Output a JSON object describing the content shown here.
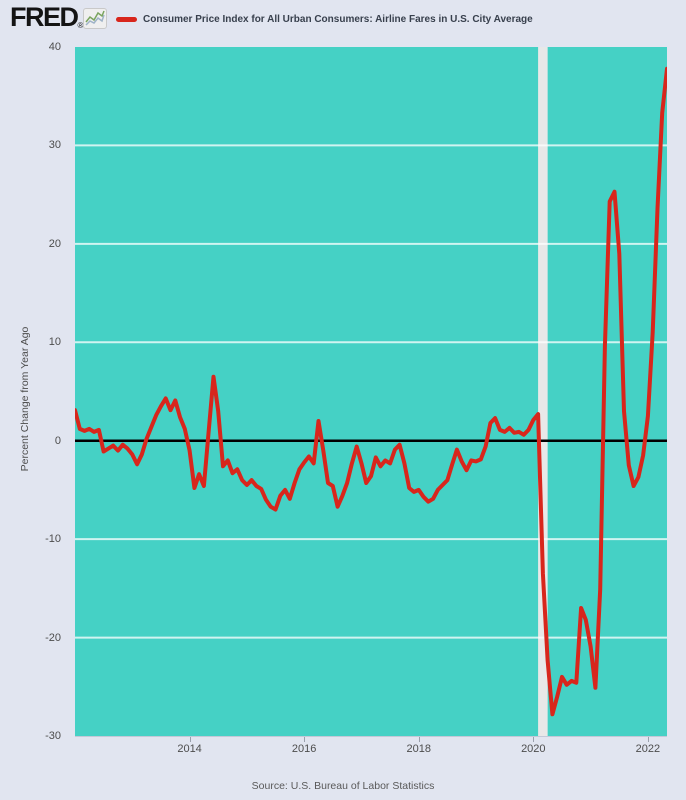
{
  "header": {
    "logo_text": "FRED",
    "registered_mark": "®",
    "legend_label": "Consumer Price Index for All Urban Consumers: Airline Fares in U.S. City Average"
  },
  "y_axis": {
    "title": "Percent Change from Year Ago",
    "ticks": [
      40,
      30,
      20,
      10,
      0,
      -10,
      -20,
      -30
    ],
    "gridline_values": [
      30,
      20,
      10,
      -10,
      -20
    ],
    "zero_line_value": 0
  },
  "x_axis": {
    "tick_years": [
      2014,
      2016,
      2018,
      2020,
      2022
    ]
  },
  "footer": {
    "source_text": "Source: U.S. Bureau of Labor Statistics"
  },
  "colors": {
    "figure_background": "#e1e5f0",
    "plot_background": "#45d1c5",
    "line": "#d8261c",
    "zero_line": "#000000",
    "gridline": "#ffffff",
    "recession_band": "#e8e8e8",
    "tick_text": "#4d4d4d",
    "title_text": "#38404d"
  },
  "chart_data": {
    "type": "line",
    "title": "Consumer Price Index for All Urban Consumers: Airline Fares in U.S. City Average",
    "ylabel": "Percent Change from Year Ago",
    "frequency": "monthly",
    "x_start": "2012-01",
    "x_end": "2022-05",
    "ylim": [
      -30,
      40
    ],
    "grid": "horizontal-only",
    "legend_position": "top",
    "recession_band": {
      "start": "2020-02",
      "end": "2020-04"
    },
    "source": "U.S. Bureau of Labor Statistics",
    "dates": [
      "2012-01",
      "2012-02",
      "2012-03",
      "2012-04",
      "2012-05",
      "2012-06",
      "2012-07",
      "2012-08",
      "2012-09",
      "2012-10",
      "2012-11",
      "2012-12",
      "2013-01",
      "2013-02",
      "2013-03",
      "2013-04",
      "2013-05",
      "2013-06",
      "2013-07",
      "2013-08",
      "2013-09",
      "2013-10",
      "2013-11",
      "2013-12",
      "2014-01",
      "2014-02",
      "2014-03",
      "2014-04",
      "2014-05",
      "2014-06",
      "2014-07",
      "2014-08",
      "2014-09",
      "2014-10",
      "2014-11",
      "2014-12",
      "2015-01",
      "2015-02",
      "2015-03",
      "2015-04",
      "2015-05",
      "2015-06",
      "2015-07",
      "2015-08",
      "2015-09",
      "2015-10",
      "2015-11",
      "2015-12",
      "2016-01",
      "2016-02",
      "2016-03",
      "2016-04",
      "2016-05",
      "2016-06",
      "2016-07",
      "2016-08",
      "2016-09",
      "2016-10",
      "2016-11",
      "2016-12",
      "2017-01",
      "2017-02",
      "2017-03",
      "2017-04",
      "2017-05",
      "2017-06",
      "2017-07",
      "2017-08",
      "2017-09",
      "2017-10",
      "2017-11",
      "2017-12",
      "2018-01",
      "2018-02",
      "2018-03",
      "2018-04",
      "2018-05",
      "2018-06",
      "2018-07",
      "2018-08",
      "2018-09",
      "2018-10",
      "2018-11",
      "2018-12",
      "2019-01",
      "2019-02",
      "2019-03",
      "2019-04",
      "2019-05",
      "2019-06",
      "2019-07",
      "2019-08",
      "2019-09",
      "2019-10",
      "2019-11",
      "2019-12",
      "2020-01",
      "2020-02",
      "2020-03",
      "2020-04",
      "2020-05",
      "2020-06",
      "2020-07",
      "2020-08",
      "2020-09",
      "2020-10",
      "2020-11",
      "2020-12",
      "2021-01",
      "2021-02",
      "2021-03",
      "2021-04",
      "2021-05",
      "2021-06",
      "2021-07",
      "2021-08",
      "2021-09",
      "2021-10",
      "2021-11",
      "2021-12",
      "2022-01",
      "2022-02",
      "2022-03",
      "2022-04",
      "2022-05"
    ],
    "values": [
      3.1,
      1.2,
      1.0,
      1.2,
      0.9,
      1.1,
      -1.1,
      -0.8,
      -0.5,
      -1.0,
      -0.4,
      -0.8,
      -1.4,
      -2.4,
      -1.4,
      0.2,
      1.4,
      2.6,
      3.5,
      4.3,
      3.1,
      4.1,
      2.4,
      1.2,
      -1.0,
      -4.8,
      -3.4,
      -4.6,
      1.0,
      6.5,
      3.0,
      -2.6,
      -2.0,
      -3.3,
      -2.9,
      -4.0,
      -4.5,
      -4.0,
      -4.6,
      -4.9,
      -6.0,
      -6.7,
      -7.0,
      -5.6,
      -5.0,
      -5.9,
      -4.3,
      -2.9,
      -2.2,
      -1.6,
      -2.3,
      2.0,
      -1.0,
      -4.3,
      -4.6,
      -6.7,
      -5.6,
      -4.3,
      -2.3,
      -0.6,
      -2.3,
      -4.3,
      -3.6,
      -1.7,
      -2.6,
      -2.0,
      -2.3,
      -0.9,
      -0.4,
      -2.3,
      -4.8,
      -5.2,
      -5.0,
      -5.7,
      -6.2,
      -5.9,
      -5.0,
      -4.5,
      -4.0,
      -2.4,
      -0.9,
      -2.1,
      -3.0,
      -2.0,
      -2.1,
      -1.9,
      -0.6,
      1.8,
      2.3,
      1.1,
      0.9,
      1.3,
      0.8,
      0.9,
      0.6,
      1.1,
      2.1,
      2.7,
      -13.5,
      -22.3,
      -27.8,
      -26.0,
      -24.0,
      -24.8,
      -24.4,
      -24.6,
      -17.0,
      -18.2,
      -20.9,
      -25.1,
      -15.1,
      9.6,
      24.3,
      25.3,
      19.0,
      3.0,
      -2.5,
      -4.6,
      -3.7,
      -1.5,
      2.5,
      11.0,
      23.6,
      33.3,
      37.8
    ]
  }
}
